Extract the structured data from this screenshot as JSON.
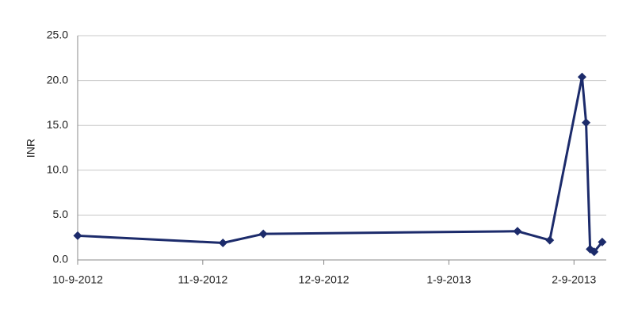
{
  "chart_data": {
    "type": "line",
    "y_label": "INR",
    "x": [
      "2012-10-09",
      "2012-11-14",
      "2012-11-24",
      "2013-01-26",
      "2013-02-03",
      "2013-02-11",
      "2013-02-12",
      "2013-02-13",
      "2013-02-14",
      "2013-02-16"
    ],
    "series": [
      {
        "name": "INR",
        "color": "#1c2b6b",
        "values": [
          2.7,
          1.9,
          2.9,
          3.2,
          2.2,
          20.4,
          15.3,
          1.2,
          0.9,
          2.0
        ]
      }
    ],
    "xlim": [
      "2012-10-09",
      "2013-02-17"
    ],
    "xticks": [
      {
        "value": "2012-10-09",
        "label": "10-9-2012"
      },
      {
        "value": "2012-11-09",
        "label": "11-9-2012"
      },
      {
        "value": "2012-12-09",
        "label": "12-9-2012"
      },
      {
        "value": "2013-01-09",
        "label": "1-9-2013"
      },
      {
        "value": "2013-02-09",
        "label": "2-9-2013"
      }
    ],
    "ylim": [
      0,
      25
    ],
    "yticks": [
      {
        "value": 0,
        "label": "0.0"
      },
      {
        "value": 5,
        "label": "5.0"
      },
      {
        "value": 10,
        "label": "10.0"
      },
      {
        "value": 15,
        "label": "15.0"
      },
      {
        "value": 20,
        "label": "20.0"
      },
      {
        "value": 25,
        "label": "25.0"
      }
    ],
    "grid": true
  }
}
